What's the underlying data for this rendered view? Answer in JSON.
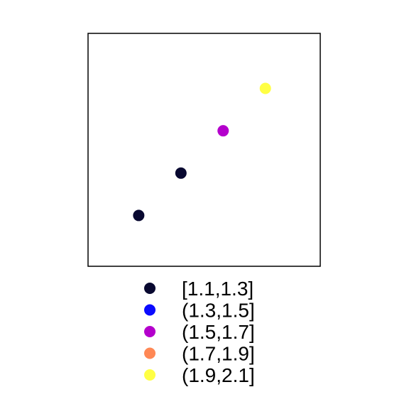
{
  "chart_data": {
    "type": "scatter",
    "title": "",
    "xlabel": "",
    "ylabel": "",
    "xlim": [
      0.6,
      6.1
    ],
    "ylim": [
      0.6,
      6.1
    ],
    "axes_visible": false,
    "grid": false,
    "points": [
      {
        "x": 1.8,
        "y": 1.8,
        "group": "[1.1,1.3]"
      },
      {
        "x": 2.8,
        "y": 2.8,
        "group": "[1.1,1.3]"
      },
      {
        "x": 3.8,
        "y": 3.8,
        "group": "(1.5,1.7]"
      },
      {
        "x": 4.8,
        "y": 4.8,
        "group": "(1.9,2.1]"
      }
    ],
    "legend": {
      "placement": "bottom",
      "entries": [
        {
          "label": "[1.1,1.3]",
          "color": "#080830"
        },
        {
          "label": "(1.3,1.5]",
          "color": "#0b0bff"
        },
        {
          "label": "(1.5,1.7]",
          "color": "#b400cc"
        },
        {
          "label": "(1.7,1.9]",
          "color": "#ff8855"
        },
        {
          "label": "(1.9,2.1]",
          "color": "#ffff44"
        }
      ]
    }
  }
}
